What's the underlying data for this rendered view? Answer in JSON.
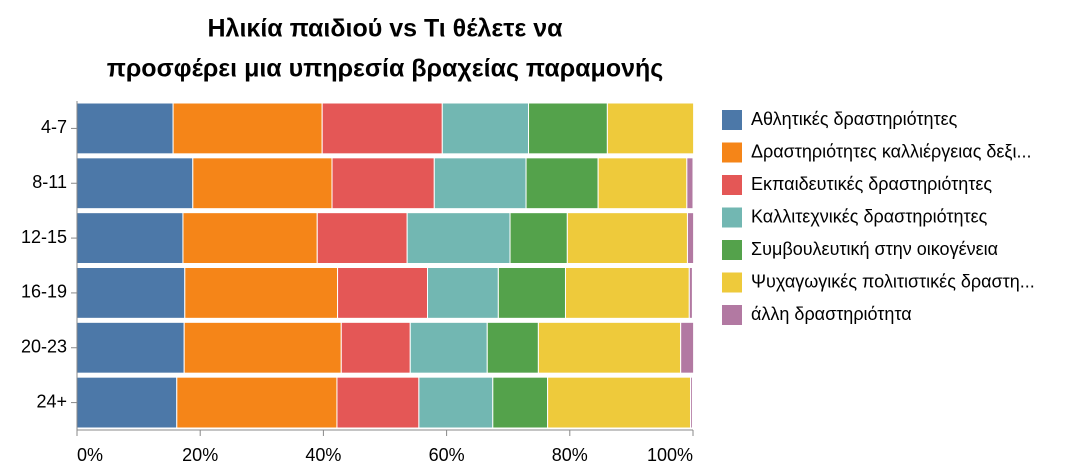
{
  "chart_data": {
    "type": "stacked-barh",
    "title": [
      "Ηλικία παιδιού vs Τι θέλετε να",
      "προσφέρει μια υπηρεσία βραχείας παραμονής"
    ],
    "categories": [
      "4-7",
      "8-11",
      "12-15",
      "16-19",
      "20-23",
      "24+"
    ],
    "series": [
      {
        "name": "Αθλητικές δραστηριότητες",
        "color": "#4c78a8",
        "values": [
          15.6,
          18.8,
          17.2,
          17.5,
          17.4,
          16.2
        ]
      },
      {
        "name": "Δραστηριότητες καλλιέργειας δεξι...",
        "color": "#f58518",
        "values": [
          24.2,
          22.6,
          21.8,
          24.8,
          25.5,
          26.0
        ]
      },
      {
        "name": "Εκπαιδευτικές δραστηριότητες",
        "color": "#e45756",
        "values": [
          19.5,
          16.6,
          14.6,
          14.6,
          11.2,
          13.3
        ]
      },
      {
        "name": "Καλλιτεχνικές δραστηριότητες",
        "color": "#72b7b2",
        "values": [
          14.0,
          14.9,
          16.7,
          11.5,
          12.5,
          12.0
        ]
      },
      {
        "name": "Συμβουλευτική στην οικογένεια",
        "color": "#54a24b",
        "values": [
          12.8,
          11.7,
          9.3,
          10.9,
          8.3,
          8.9
        ]
      },
      {
        "name": "Ψυχαγωγικές πολιτιστικές δραστη...",
        "color": "#eeca3b",
        "values": [
          14.0,
          14.4,
          19.5,
          20.1,
          23.1,
          23.2
        ]
      },
      {
        "name": "άλλη δραστηριότητα",
        "color": "#b279a2",
        "values": [
          0,
          1.0,
          1.0,
          0.5,
          2.1,
          0.3
        ]
      }
    ],
    "xlim": [
      0,
      100
    ],
    "xticks": [
      {
        "value": 0,
        "label": "0%"
      },
      {
        "value": 20,
        "label": "20%"
      },
      {
        "value": 40,
        "label": "40%"
      },
      {
        "value": 60,
        "label": "60%"
      },
      {
        "value": 80,
        "label": "80%"
      },
      {
        "value": 100,
        "label": "100%"
      }
    ],
    "legend": "right"
  }
}
